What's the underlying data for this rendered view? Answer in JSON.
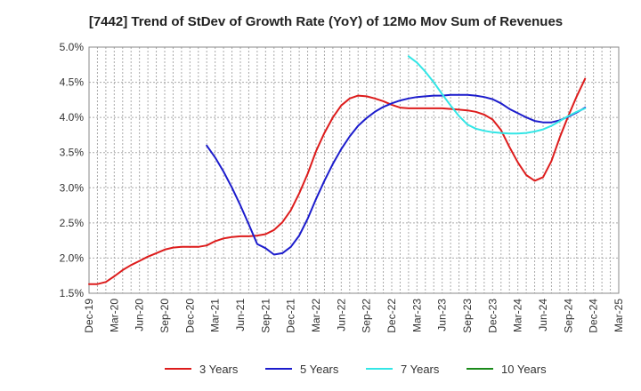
{
  "chart_data": {
    "type": "line",
    "title": "[7442]  Trend of StDev of Growth Rate (YoY) of 12Mo Mov Sum of Revenues",
    "xlabel": "",
    "ylabel": "",
    "ylim": [
      1.5,
      5.0
    ],
    "y_ticks": [
      "1.5%",
      "2.0%",
      "2.5%",
      "3.0%",
      "3.5%",
      "4.0%",
      "4.5%",
      "5.0%"
    ],
    "y_tick_values": [
      1.5,
      2.0,
      2.5,
      3.0,
      3.5,
      4.0,
      4.5,
      5.0
    ],
    "x_ticks": [
      "Dec-19",
      "Mar-20",
      "Jun-20",
      "Sep-20",
      "Dec-20",
      "Mar-21",
      "Jun-21",
      "Sep-21",
      "Dec-21",
      "Mar-22",
      "Jun-22",
      "Sep-22",
      "Dec-22",
      "Mar-23",
      "Jun-23",
      "Sep-23",
      "Dec-23",
      "Mar-24",
      "Jun-24",
      "Sep-24",
      "Dec-24",
      "Mar-25"
    ],
    "x_range_months": [
      0,
      63
    ],
    "grid": true,
    "legend_position": "bottom",
    "series": [
      {
        "name": "3 Years",
        "color": "#dd1c1c",
        "points": [
          [
            0,
            1.63
          ],
          [
            1,
            1.63
          ],
          [
            2,
            1.66
          ],
          [
            3,
            1.74
          ],
          [
            4,
            1.83
          ],
          [
            5,
            1.9
          ],
          [
            6,
            1.96
          ],
          [
            7,
            2.02
          ],
          [
            8,
            2.07
          ],
          [
            9,
            2.12
          ],
          [
            10,
            2.15
          ],
          [
            11,
            2.16
          ],
          [
            12,
            2.16
          ],
          [
            13,
            2.16
          ],
          [
            14,
            2.18
          ],
          [
            15,
            2.24
          ],
          [
            16,
            2.28
          ],
          [
            17,
            2.3
          ],
          [
            18,
            2.31
          ],
          [
            19,
            2.31
          ],
          [
            20,
            2.32
          ],
          [
            21,
            2.34
          ],
          [
            22,
            2.4
          ],
          [
            23,
            2.51
          ],
          [
            24,
            2.68
          ],
          [
            25,
            2.92
          ],
          [
            26,
            3.2
          ],
          [
            27,
            3.52
          ],
          [
            28,
            3.78
          ],
          [
            29,
            4.0
          ],
          [
            30,
            4.17
          ],
          [
            31,
            4.27
          ],
          [
            32,
            4.31
          ],
          [
            33,
            4.3
          ],
          [
            34,
            4.27
          ],
          [
            35,
            4.23
          ],
          [
            36,
            4.18
          ],
          [
            37,
            4.14
          ],
          [
            38,
            4.13
          ],
          [
            39,
            4.13
          ],
          [
            40,
            4.13
          ],
          [
            41,
            4.13
          ],
          [
            42,
            4.13
          ],
          [
            43,
            4.12
          ],
          [
            44,
            4.11
          ],
          [
            45,
            4.1
          ],
          [
            46,
            4.08
          ],
          [
            47,
            4.04
          ],
          [
            48,
            3.97
          ],
          [
            49,
            3.82
          ],
          [
            50,
            3.58
          ],
          [
            51,
            3.36
          ],
          [
            52,
            3.18
          ],
          [
            53,
            3.1
          ],
          [
            54,
            3.15
          ],
          [
            55,
            3.38
          ],
          [
            56,
            3.72
          ],
          [
            57,
            4.02
          ],
          [
            58,
            4.3
          ],
          [
            59,
            4.55
          ]
        ]
      },
      {
        "name": "5 Years",
        "color": "#1c1ccc",
        "points": [
          [
            14,
            3.6
          ],
          [
            15,
            3.43
          ],
          [
            16,
            3.23
          ],
          [
            17,
            3.0
          ],
          [
            18,
            2.75
          ],
          [
            19,
            2.48
          ],
          [
            20,
            2.2
          ],
          [
            21,
            2.14
          ],
          [
            22,
            2.05
          ],
          [
            23,
            2.07
          ],
          [
            24,
            2.16
          ],
          [
            25,
            2.32
          ],
          [
            26,
            2.56
          ],
          [
            27,
            2.84
          ],
          [
            28,
            3.1
          ],
          [
            29,
            3.34
          ],
          [
            30,
            3.55
          ],
          [
            31,
            3.73
          ],
          [
            32,
            3.88
          ],
          [
            33,
            3.99
          ],
          [
            34,
            4.08
          ],
          [
            35,
            4.15
          ],
          [
            36,
            4.2
          ],
          [
            37,
            4.24
          ],
          [
            38,
            4.27
          ],
          [
            39,
            4.29
          ],
          [
            40,
            4.3
          ],
          [
            41,
            4.31
          ],
          [
            42,
            4.31
          ],
          [
            43,
            4.32
          ],
          [
            44,
            4.32
          ],
          [
            45,
            4.32
          ],
          [
            46,
            4.31
          ],
          [
            47,
            4.29
          ],
          [
            48,
            4.26
          ],
          [
            49,
            4.2
          ],
          [
            50,
            4.12
          ],
          [
            51,
            4.06
          ],
          [
            52,
            4.0
          ],
          [
            53,
            3.95
          ],
          [
            54,
            3.93
          ],
          [
            55,
            3.93
          ],
          [
            56,
            3.96
          ],
          [
            57,
            4.01
          ],
          [
            58,
            4.07
          ],
          [
            59,
            4.14
          ]
        ]
      },
      {
        "name": "7 Years",
        "color": "#33e6e6",
        "points": [
          [
            38,
            4.87
          ],
          [
            39,
            4.78
          ],
          [
            40,
            4.65
          ],
          [
            41,
            4.5
          ],
          [
            42,
            4.33
          ],
          [
            43,
            4.17
          ],
          [
            44,
            4.02
          ],
          [
            45,
            3.9
          ],
          [
            46,
            3.84
          ],
          [
            47,
            3.81
          ],
          [
            48,
            3.79
          ],
          [
            49,
            3.78
          ],
          [
            50,
            3.77
          ],
          [
            51,
            3.77
          ],
          [
            52,
            3.78
          ],
          [
            53,
            3.8
          ],
          [
            54,
            3.83
          ],
          [
            55,
            3.88
          ],
          [
            56,
            3.95
          ],
          [
            57,
            4.02
          ],
          [
            58,
            4.08
          ],
          [
            59,
            4.13
          ]
        ]
      },
      {
        "name": "10 Years",
        "color": "#1a8a1a",
        "points": []
      }
    ]
  }
}
